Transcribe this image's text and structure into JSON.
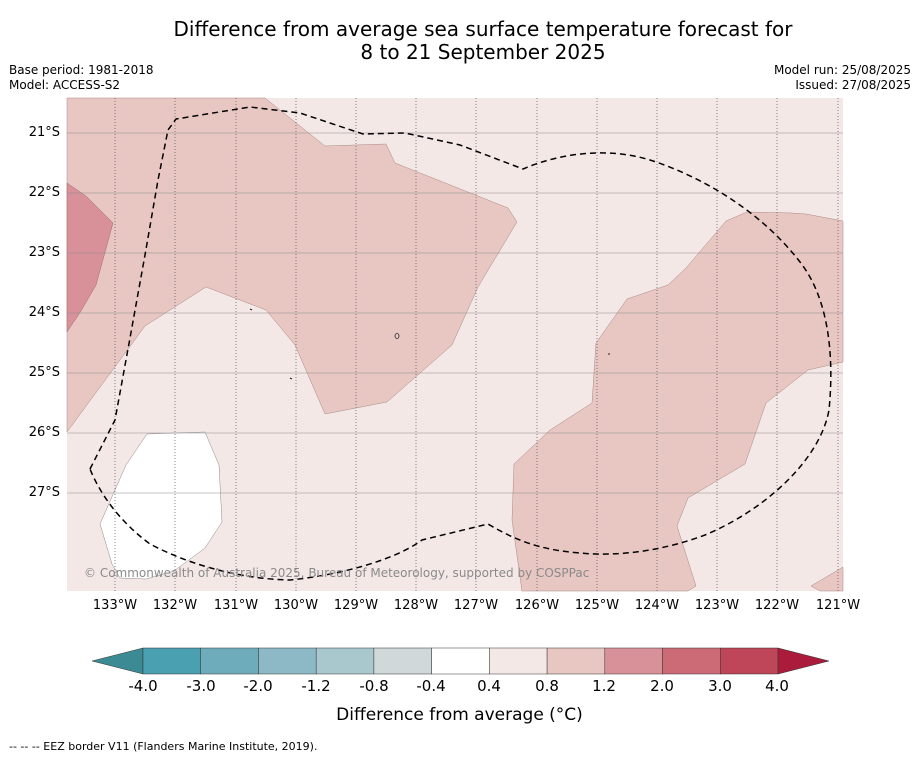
{
  "title_line1": "Difference from average sea surface temperature forecast for",
  "title_line2": "8 to 21 September 2025",
  "base_period": "Base period: 1981-2018",
  "model": "Model: ACCESS-S2",
  "model_run": "Model run: 25/08/2025",
  "issued": "Issued: 27/08/2025",
  "lat_labels": [
    "21°S",
    "22°S",
    "23°S",
    "24°S",
    "25°S",
    "26°S",
    "27°S"
  ],
  "lon_labels": [
    "133°W",
    "132°W",
    "131°W",
    "130°W",
    "129°W",
    "128°W",
    "127°W",
    "126°W",
    "125°W",
    "124°W",
    "123°W",
    "122°W",
    "121°W"
  ],
  "credit": "© Commonwealth of Australia 2025, Bureau of Meteorology, supported by COSPPac",
  "colorbar": {
    "labels": [
      "-4.0",
      "-3.0",
      "-2.0",
      "-1.2",
      "-0.8",
      "-0.4",
      "0.4",
      "0.8",
      "1.2",
      "2.0",
      "3.0",
      "4.0"
    ],
    "colors": [
      "#4aa0b0",
      "#6eacbb",
      "#8cb9c5",
      "#a9c8cd",
      "#d0d8da",
      "#ffffff",
      "#f4e8e7",
      "#e8c7c3",
      "#d89198",
      "#cc6b76",
      "#be4658"
    ],
    "low_extend_color": "#3c8a93",
    "high_extend_color": "#ab1c3c",
    "title": "Difference from average (°C)"
  },
  "map_colors": {
    "band_0p4_0p8": "#f4e8e7",
    "band_0p8_1p2": "#e8c7c3",
    "band_1p2_2p0": "#d89198",
    "band_neutral": "#ffffff"
  },
  "footnote": "--  --  -- EEZ border V11 (Flanders Marine Institute, 2019)."
}
